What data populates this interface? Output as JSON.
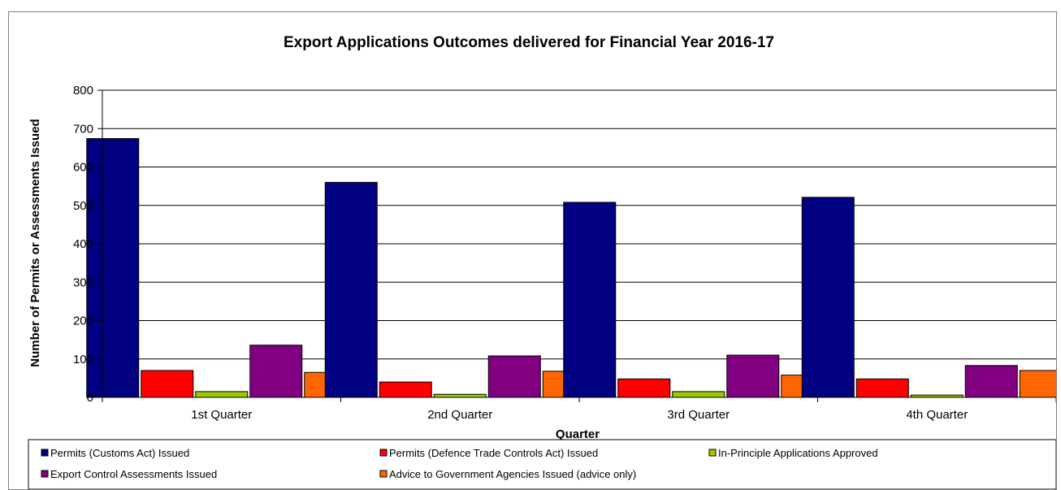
{
  "chart_data": {
    "type": "bar",
    "title": "Export Applications Outcomes delivered for Financial Year 2016-17",
    "xlabel": "Quarter",
    "ylabel": "Number of Permits or Assessments Issued",
    "categories": [
      "1st Quarter",
      "2nd Quarter",
      "3rd Quarter",
      "4th Quarter"
    ],
    "ylim": [
      0,
      800
    ],
    "yticks": [
      0,
      100,
      200,
      300,
      400,
      500,
      600,
      700,
      800
    ],
    "grid": true,
    "legend_position": "bottom",
    "series": [
      {
        "name": "Permits (Customs Act) Issued",
        "color": "#000080",
        "values": [
          674,
          560,
          508,
          521
        ]
      },
      {
        "name": "Permits (Defence Trade Controls Act) Issued",
        "color": "#ff0000",
        "values": [
          70,
          40,
          48,
          48
        ]
      },
      {
        "name": "In-Principle Applications Approved",
        "color": "#99cc00",
        "values": [
          15,
          8,
          15,
          6
        ]
      },
      {
        "name": "Export Control Assessments Issued",
        "color": "#800080",
        "values": [
          136,
          108,
          110,
          83
        ]
      },
      {
        "name": "Advice to Government Agencies Issued (advice only)",
        "color": "#ff6600",
        "values": [
          65,
          68,
          58,
          70
        ]
      }
    ]
  }
}
